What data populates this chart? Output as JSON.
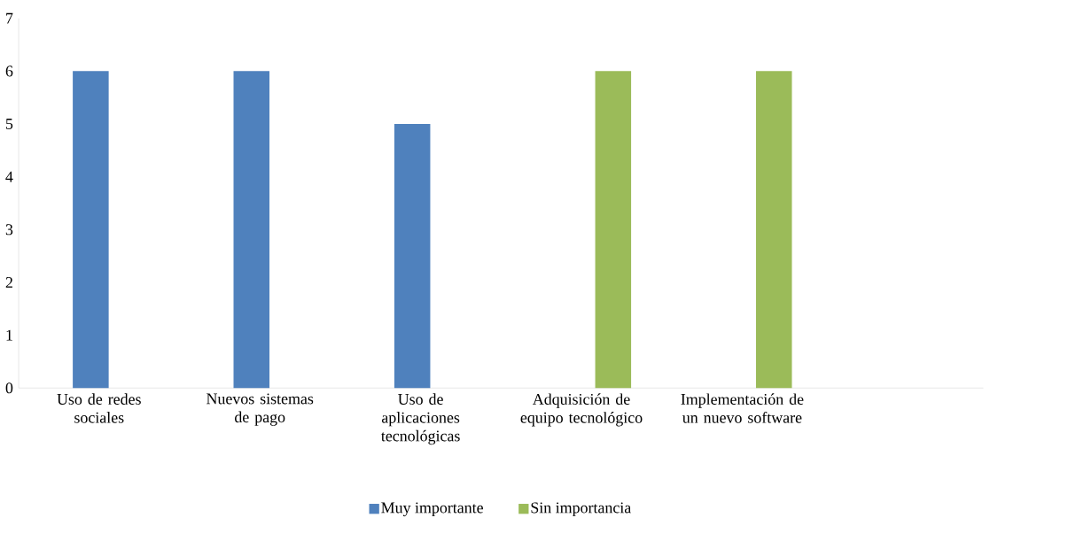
{
  "chart_data": {
    "type": "bar",
    "categories": [
      "Uso de redes sociales",
      "Nuevos sistemas de pago",
      "Uso de aplicaciones tecnológicas",
      "Adquisición de equipo tecnológico",
      "Implementación de un nuevo software",
      null
    ],
    "series": [
      {
        "name": "Muy importante",
        "color": "#4f81bd",
        "values": [
          6,
          6,
          5,
          null,
          null,
          null
        ]
      },
      {
        "name": "Sin importancia",
        "color": "#9bbb59",
        "values": [
          null,
          null,
          null,
          6,
          6,
          null
        ]
      }
    ],
    "ylim": [
      0,
      7
    ],
    "yticks": [
      0,
      1,
      2,
      3,
      4,
      5,
      6,
      7
    ],
    "legend": "bottom"
  }
}
